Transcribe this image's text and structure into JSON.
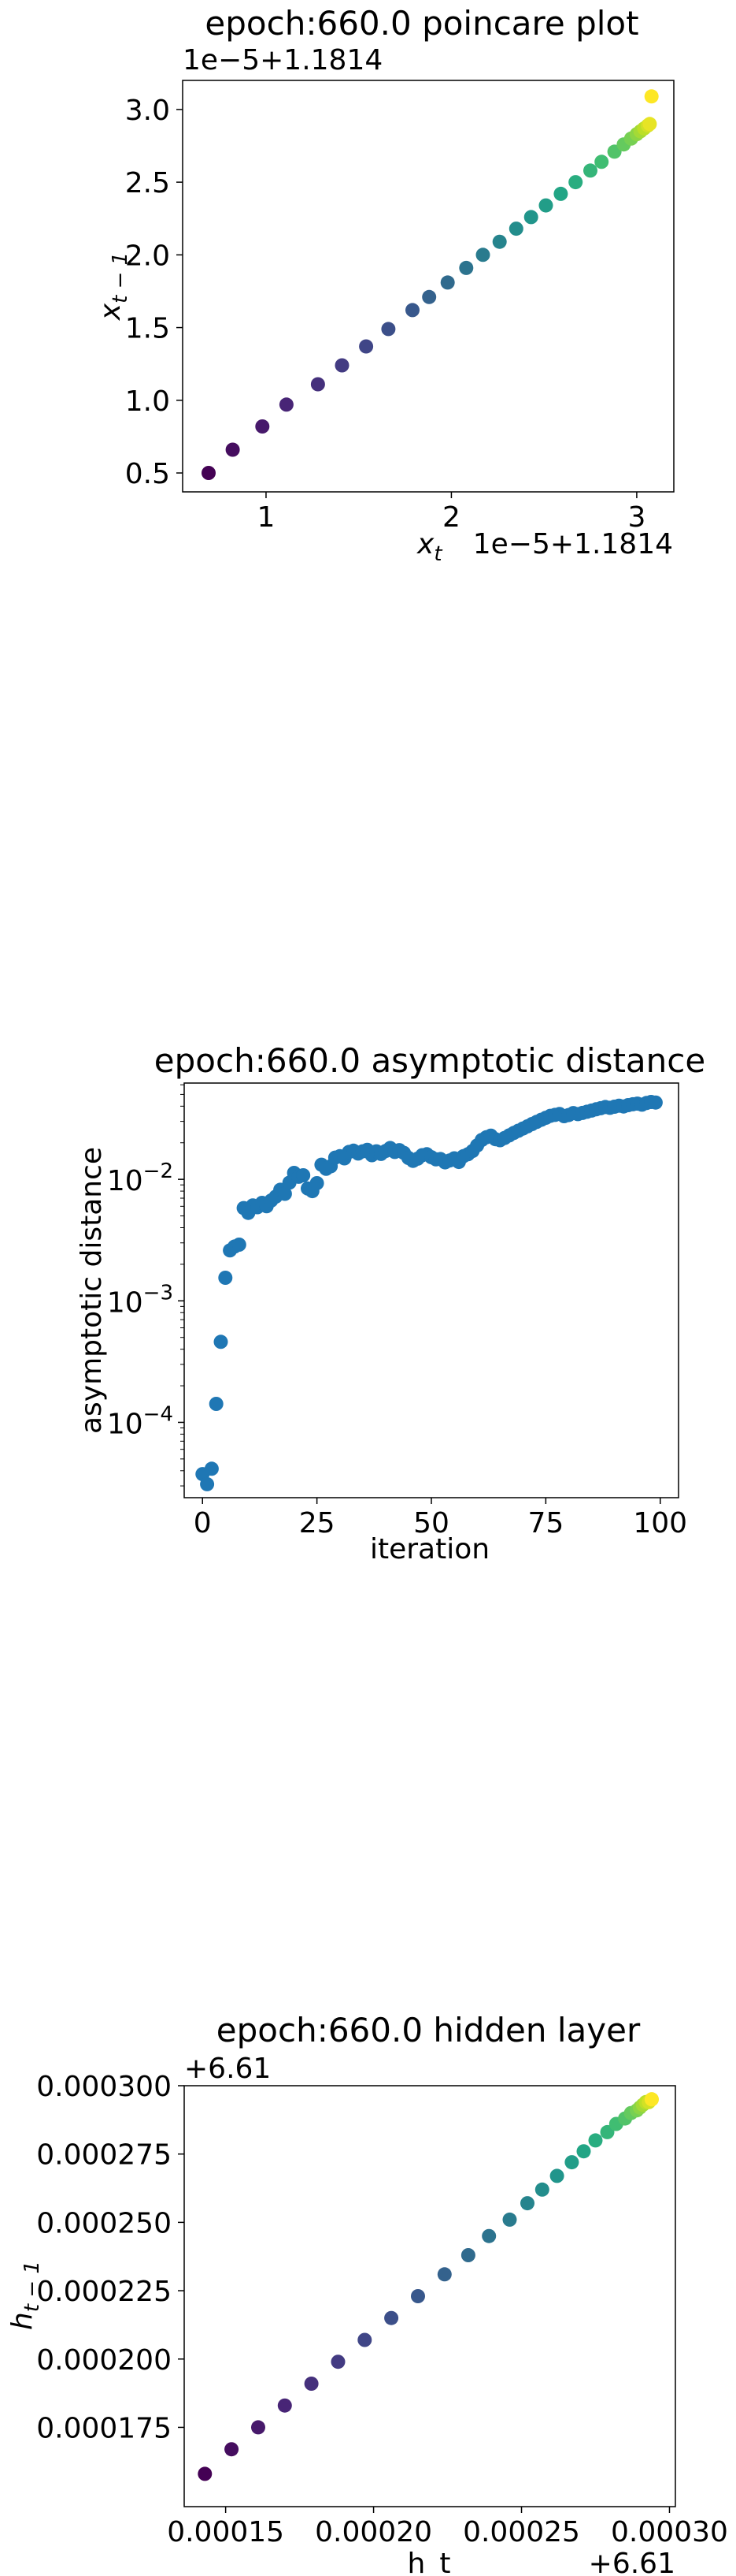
{
  "chart_data": [
    {
      "type": "scatter",
      "title": "epoch:660.0 poincare plot",
      "xlabel": "x_t",
      "ylabel": "x_{t-1}",
      "x_offset_label": "1e−5+1.1814",
      "y_offset_label": "1e−5+1.1814",
      "x_scale": "linear",
      "y_scale": "linear",
      "xlim": [
        0.55,
        3.2
      ],
      "ylim": [
        0.37,
        3.2
      ],
      "x_ticks": [
        1,
        2,
        3
      ],
      "x_tick_labels": [
        "1",
        "2",
        "3"
      ],
      "y_ticks": [
        0.5,
        1.0,
        1.5,
        2.0,
        2.5,
        3.0
      ],
      "y_tick_labels": [
        "0.5",
        "1.0",
        "1.5",
        "2.0",
        "2.5",
        "3.0"
      ],
      "colormap": "viridis",
      "grid": false,
      "note": "values shown in offset units (value = v×1e-5 + 1.1814); points lie on y ≈ x - 0.17, colored by iteration",
      "x": [
        0.69,
        0.82,
        0.98,
        1.11,
        1.28,
        1.41,
        1.54,
        1.66,
        1.79,
        1.88,
        1.98,
        2.08,
        2.17,
        2.26,
        2.35,
        2.43,
        2.51,
        2.59,
        2.67,
        2.75,
        2.81,
        2.88,
        2.93,
        2.97,
        3.0,
        3.02,
        3.04,
        3.06,
        3.07,
        3.08
      ],
      "y": [
        0.5,
        0.66,
        0.82,
        0.97,
        1.11,
        1.24,
        1.37,
        1.49,
        1.62,
        1.71,
        1.81,
        1.91,
        2.0,
        2.09,
        2.18,
        2.26,
        2.34,
        2.42,
        2.5,
        2.58,
        2.64,
        2.71,
        2.76,
        2.8,
        2.83,
        2.85,
        2.87,
        2.89,
        2.9,
        3.09
      ]
    },
    {
      "type": "scatter",
      "title": "epoch:660.0 asymptotic distance",
      "xlabel": "iteration",
      "ylabel": "asymptotic distance",
      "x_scale": "linear",
      "y_scale": "log",
      "xlim": [
        -4,
        104
      ],
      "ylim": [
        2.4e-05,
        0.062
      ],
      "x_ticks": [
        0,
        25,
        50,
        75,
        100
      ],
      "x_tick_labels": [
        "0",
        "25",
        "50",
        "75",
        "100"
      ],
      "y_ticks": [
        0.0001,
        0.001,
        0.01
      ],
      "y_tick_bases": [
        "10",
        "10",
        "10"
      ],
      "y_tick_exps": [
        "−4",
        "−3",
        "−2"
      ],
      "color": "#1f77b4",
      "grid": false,
      "x": [
        0,
        1,
        2,
        3,
        4,
        5,
        6,
        7,
        8,
        9,
        10,
        11,
        12,
        13,
        14,
        15,
        16,
        17,
        18,
        19,
        20,
        21,
        22,
        23,
        24,
        25,
        26,
        27,
        28,
        29,
        30,
        31,
        32,
        33,
        34,
        35,
        36,
        37,
        38,
        39,
        40,
        41,
        42,
        43,
        44,
        45,
        46,
        47,
        48,
        49,
        50,
        51,
        52,
        53,
        54,
        55,
        56,
        57,
        58,
        59,
        60,
        61,
        62,
        63,
        64,
        65,
        66,
        67,
        68,
        69,
        70,
        71,
        72,
        73,
        74,
        75,
        76,
        77,
        78,
        79,
        80,
        81,
        82,
        83,
        84,
        85,
        86,
        87,
        88,
        89,
        90,
        91,
        92,
        93,
        94,
        95,
        96,
        97,
        98,
        99
      ],
      "y": [
        3.75e-05,
        3.1e-05,
        4.15e-05,
        0.000142,
        0.00046,
        0.00155,
        0.0026,
        0.0028,
        0.0029,
        0.0058,
        0.0053,
        0.0061,
        0.0059,
        0.0064,
        0.006,
        0.0067,
        0.0072,
        0.0082,
        0.0076,
        0.0094,
        0.0113,
        0.0105,
        0.0108,
        0.0084,
        0.008,
        0.0093,
        0.0132,
        0.0122,
        0.0128,
        0.0151,
        0.0155,
        0.0149,
        0.0168,
        0.0172,
        0.0163,
        0.017,
        0.0175,
        0.0158,
        0.017,
        0.0162,
        0.0171,
        0.0181,
        0.0168,
        0.0174,
        0.0165,
        0.015,
        0.0142,
        0.0148,
        0.0158,
        0.0161,
        0.0152,
        0.0146,
        0.0147,
        0.0138,
        0.0143,
        0.0149,
        0.0139,
        0.0155,
        0.0161,
        0.0171,
        0.019,
        0.0211,
        0.0222,
        0.0229,
        0.0214,
        0.021,
        0.0219,
        0.023,
        0.0241,
        0.0251,
        0.0262,
        0.0273,
        0.0285,
        0.0297,
        0.0309,
        0.0321,
        0.0333,
        0.0339,
        0.0345,
        0.0331,
        0.0338,
        0.0351,
        0.0344,
        0.0352,
        0.036,
        0.0368,
        0.0377,
        0.0385,
        0.0394,
        0.0388,
        0.0396,
        0.0404,
        0.0398,
        0.0408,
        0.0415,
        0.042,
        0.0412,
        0.0425,
        0.0433,
        0.0429
      ]
    },
    {
      "type": "scatter",
      "title": "epoch:660.0 hidden layer",
      "xlabel": "h_t",
      "ylabel": "h_{t-1}",
      "x_offset_label": "+6.61",
      "y_offset_label": "+6.61",
      "x_scale": "linear",
      "y_scale": "linear",
      "xlim": [
        0.000136,
        0.000302
      ],
      "ylim": [
        0.000146,
        0.0003
      ],
      "x_ticks": [
        0.00015,
        0.0002,
        0.00025,
        0.0003
      ],
      "x_tick_labels": [
        "0.00015",
        "0.00020",
        "0.00025",
        "0.00030"
      ],
      "y_ticks": [
        0.000175,
        0.0002,
        0.000225,
        0.00025,
        0.000275,
        0.0003
      ],
      "y_tick_labels": [
        "0.000175",
        "0.000200",
        "0.000225",
        "0.000250",
        "0.000275",
        "0.000300"
      ],
      "colormap": "viridis",
      "grid": false,
      "note": "values shown relative to offset +6.61, colored by iteration",
      "x": [
        0.000143,
        0.000152,
        0.000161,
        0.00017,
        0.000179,
        0.000188,
        0.000197,
        0.000206,
        0.000215,
        0.000224,
        0.000232,
        0.000239,
        0.000246,
        0.000252,
        0.000257,
        0.000262,
        0.000267,
        0.000271,
        0.000275,
        0.000279,
        0.000282,
        0.000285,
        0.000287,
        0.000289,
        0.00029,
        0.000291,
        0.000292,
        0.000293,
        0.000294,
        0.000294
      ],
      "y": [
        0.000158,
        0.000167,
        0.000175,
        0.000183,
        0.000191,
        0.000199,
        0.000207,
        0.000215,
        0.000223,
        0.000231,
        0.000238,
        0.000245,
        0.000251,
        0.000257,
        0.000262,
        0.000267,
        0.000272,
        0.000276,
        0.00028,
        0.000283,
        0.000286,
        0.000288,
        0.00029,
        0.000291,
        0.000292,
        0.000293,
        0.000294,
        0.000294,
        0.000295,
        0.000295
      ]
    }
  ]
}
